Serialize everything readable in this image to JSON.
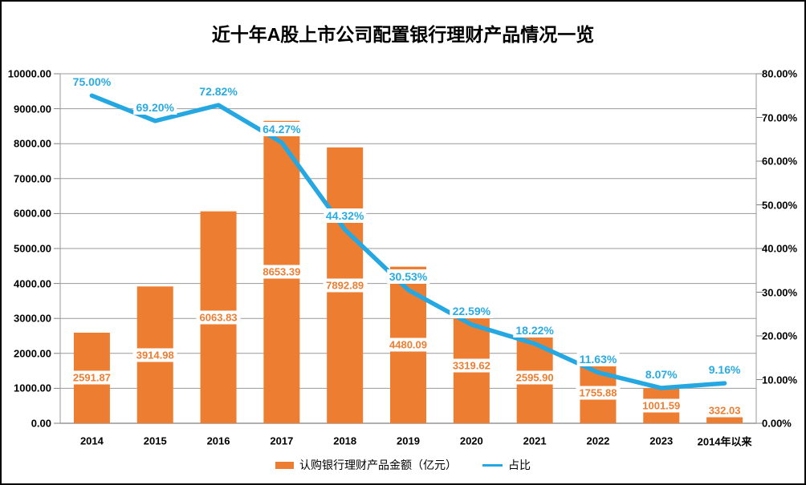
{
  "title": "近十年A股上市公司配置银行理财产品情况一览",
  "legend": {
    "bar_label": "认购银行理财产品金额（亿元）",
    "line_label": "占比"
  },
  "colors": {
    "bar": "#ED7D31",
    "bar_label_text": "#ED7D31",
    "line": "#25A8E1",
    "line_label_text": "#29ABE2",
    "gridline": "#999999",
    "axis_line": "#808080",
    "axis_text": "#000000",
    "background": "#FFFFFF",
    "border": "#000000"
  },
  "chart_data": {
    "type": "combo (bar + line, dual axis)",
    "title": "近十年A股上市公司配置银行理财产品情况一览",
    "categories": [
      "2014",
      "2015",
      "2016",
      "2017",
      "2018",
      "2019",
      "2020",
      "2021",
      "2022",
      "2023",
      "2014年以来"
    ],
    "series": [
      {
        "name": "认购银行理财产品金额（亿元）",
        "chart_type": "bar",
        "y_axis": "left",
        "unit": "亿元",
        "color": "#ED7D31",
        "values": [
          2591.87,
          3914.98,
          6063.83,
          8653.39,
          7892.89,
          4480.09,
          3319.62,
          2595.9,
          1755.88,
          1001.59,
          332.03
        ],
        "data_labels": [
          "2591.87",
          "3914.98",
          "6063.83",
          "8653.39",
          "7892.89",
          "4480.09",
          "3319.62",
          "2595.90",
          "1755.88",
          "1001.59",
          "332.03"
        ]
      },
      {
        "name": "占比",
        "chart_type": "line",
        "y_axis": "right",
        "unit": "%",
        "color": "#25A8E1",
        "values": [
          75.0,
          69.2,
          72.82,
          64.27,
          44.32,
          30.53,
          22.59,
          18.22,
          11.63,
          8.07,
          9.16
        ],
        "data_labels": [
          "75.00%",
          "69.20%",
          "72.82%",
          "64.27%",
          "44.32%",
          "30.53%",
          "22.59%",
          "18.22%",
          "11.63%",
          "8.07%",
          "9.16%"
        ]
      }
    ],
    "left_axis": {
      "min": 0,
      "max": 10000,
      "step": 1000,
      "tick_labels": [
        "0.00",
        "1000.00",
        "2000.00",
        "3000.00",
        "4000.00",
        "5000.00",
        "6000.00",
        "7000.00",
        "8000.00",
        "9000.00",
        "10000.00"
      ]
    },
    "right_axis": {
      "min": 0,
      "max": 80,
      "step": 10,
      "tick_labels": [
        "0.00%",
        "10.00%",
        "20.00%",
        "30.00%",
        "40.00%",
        "50.00%",
        "60.00%",
        "70.00%",
        "80.00%"
      ]
    },
    "grid": "horizontal gridlines tied to left axis",
    "legend_position": "bottom"
  }
}
